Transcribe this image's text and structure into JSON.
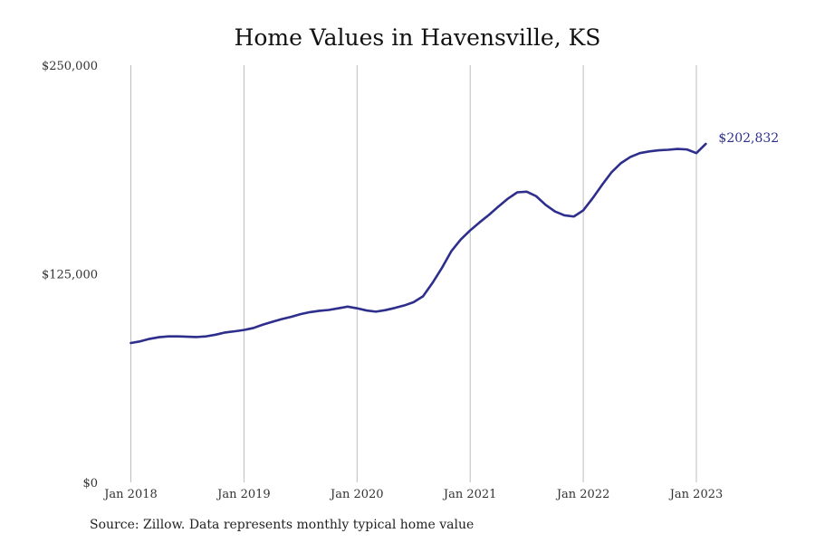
{
  "chart_data": {
    "type": "line",
    "title": "Home Values in Havensville, KS",
    "xlabel": "",
    "ylabel": "",
    "ylim": [
      0,
      250000
    ],
    "xlim": [
      "2018-01",
      "2023-04"
    ],
    "y_ticks": [
      {
        "value": 0,
        "label": "$0"
      },
      {
        "value": 125000,
        "label": "$125,000"
      },
      {
        "value": 250000,
        "label": "$250,000"
      }
    ],
    "x_ticks": [
      {
        "value": "2018-01",
        "label": "Jan 2018"
      },
      {
        "value": "2019-01",
        "label": "Jan 2019"
      },
      {
        "value": "2020-01",
        "label": "Jan 2020"
      },
      {
        "value": "2021-01",
        "label": "Jan 2021"
      },
      {
        "value": "2022-01",
        "label": "Jan 2022"
      },
      {
        "value": "2023-01",
        "label": "Jan 2023"
      }
    ],
    "grid": {
      "vertical": true,
      "horizontal": false
    },
    "line_color": "#2e2e8c",
    "end_label": "$202,832",
    "series": [
      {
        "x": [
          "2018-01",
          "2018-02",
          "2018-03",
          "2018-04",
          "2018-05",
          "2018-06",
          "2018-07",
          "2018-08",
          "2018-09",
          "2018-10",
          "2018-11",
          "2018-12",
          "2019-01",
          "2019-02",
          "2019-03",
          "2019-04",
          "2019-05",
          "2019-06",
          "2019-07",
          "2019-08",
          "2019-09",
          "2019-10",
          "2019-11",
          "2019-12",
          "2020-01",
          "2020-02",
          "2020-03",
          "2020-04",
          "2020-05",
          "2020-06",
          "2020-07",
          "2020-08",
          "2020-09",
          "2020-10",
          "2020-11",
          "2020-12",
          "2021-01",
          "2021-02",
          "2021-03",
          "2021-04",
          "2021-05",
          "2021-06",
          "2021-07",
          "2021-08",
          "2021-09",
          "2021-10",
          "2021-11",
          "2021-12",
          "2022-01",
          "2022-02",
          "2022-03",
          "2022-04",
          "2022-05",
          "2022-06",
          "2022-07",
          "2022-08",
          "2022-09",
          "2022-10",
          "2022-11",
          "2022-12",
          "2023-01",
          "2023-02"
        ],
        "values": [
          83500,
          84500,
          86000,
          87000,
          87500,
          87500,
          87300,
          87100,
          87500,
          88500,
          89800,
          90500,
          91300,
          92500,
          94500,
          96200,
          97800,
          99200,
          100800,
          102000,
          102800,
          103300,
          104300,
          105300,
          104300,
          103000,
          102300,
          103200,
          104500,
          106000,
          108000,
          111500,
          119500,
          128500,
          138500,
          145500,
          151000,
          155800,
          160300,
          165300,
          170000,
          173800,
          174200,
          171500,
          166300,
          162300,
          160000,
          159300,
          163000,
          170300,
          178300,
          185800,
          191300,
          195000,
          197300,
          198300,
          199000,
          199300,
          199800,
          199500,
          197300,
          202832
        ]
      }
    ]
  },
  "footer": {
    "source": "Source: Zillow. Data represents monthly typical home value"
  }
}
